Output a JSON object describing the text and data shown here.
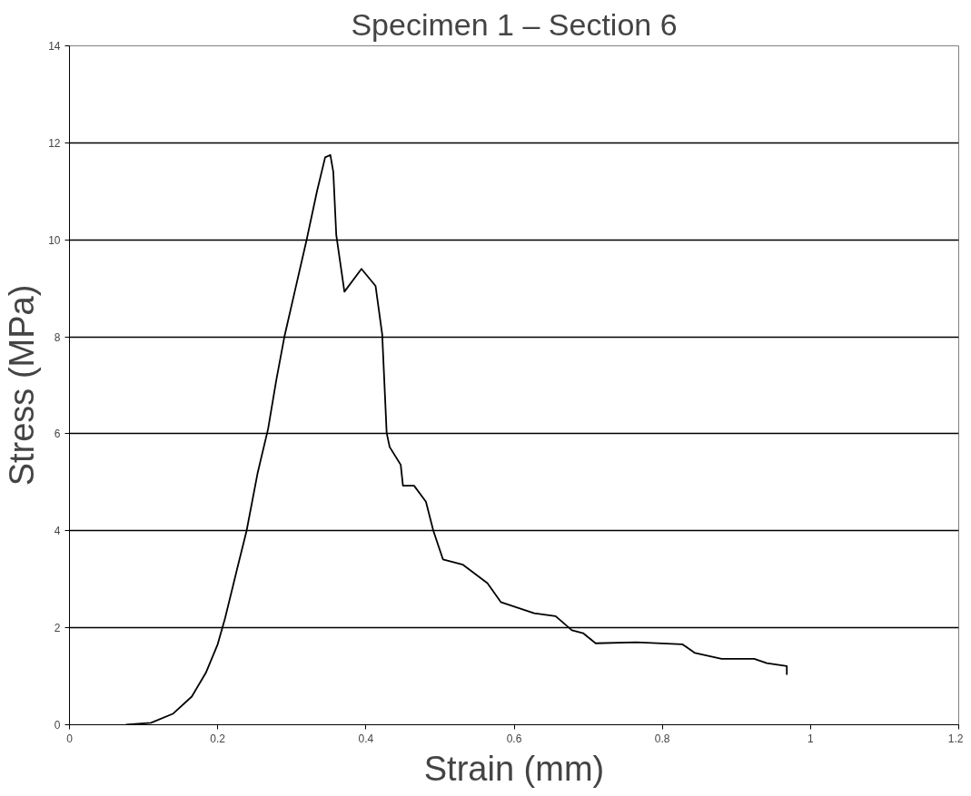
{
  "chart_data": {
    "type": "line",
    "title": "Specimen 1 – Section 6",
    "xlabel": "Strain (mm)",
    "ylabel": "Stress (MPa)",
    "xlim": [
      0,
      1.2
    ],
    "xticks": [
      0,
      0.2,
      0.4,
      0.6,
      0.8,
      1,
      1.2
    ],
    "ylim": [
      0,
      14
    ],
    "yticks": [
      0,
      2,
      4,
      6,
      8,
      10,
      12,
      14
    ],
    "grid": "y",
    "marker": "none",
    "line_style": "solid",
    "series": [
      {
        "color": "#000000",
        "x": [
          0.076,
          0.11,
          0.14,
          0.165,
          0.184,
          0.2,
          0.21,
          0.226,
          0.239,
          0.254,
          0.268,
          0.279,
          0.29,
          0.305,
          0.32,
          0.334,
          0.345,
          0.352,
          0.356,
          0.36,
          0.371,
          0.394,
          0.413,
          0.422,
          0.428,
          0.432,
          0.447,
          0.45,
          0.465,
          0.481,
          0.491,
          0.504,
          0.531,
          0.564,
          0.582,
          0.627,
          0.656,
          0.678,
          0.693,
          0.71,
          0.765,
          0.827,
          0.844,
          0.88,
          0.924,
          0.941,
          0.968,
          0.968
        ],
        "values": [
          0,
          0.04,
          0.23,
          0.58,
          1.07,
          1.66,
          2.2,
          3.2,
          4.0,
          5.2,
          6.1,
          7.1,
          8.0,
          9.0,
          10.0,
          11.0,
          11.7,
          11.75,
          11.4,
          10.1,
          8.93,
          9.4,
          9.05,
          8.05,
          6.02,
          5.73,
          5.36,
          4.93,
          4.93,
          4.6,
          4.0,
          3.41,
          3.3,
          2.92,
          2.53,
          2.3,
          2.24,
          1.95,
          1.89,
          1.68,
          1.7,
          1.66,
          1.48,
          1.36,
          1.36,
          1.27,
          1.21,
          1.03
        ]
      }
    ]
  }
}
